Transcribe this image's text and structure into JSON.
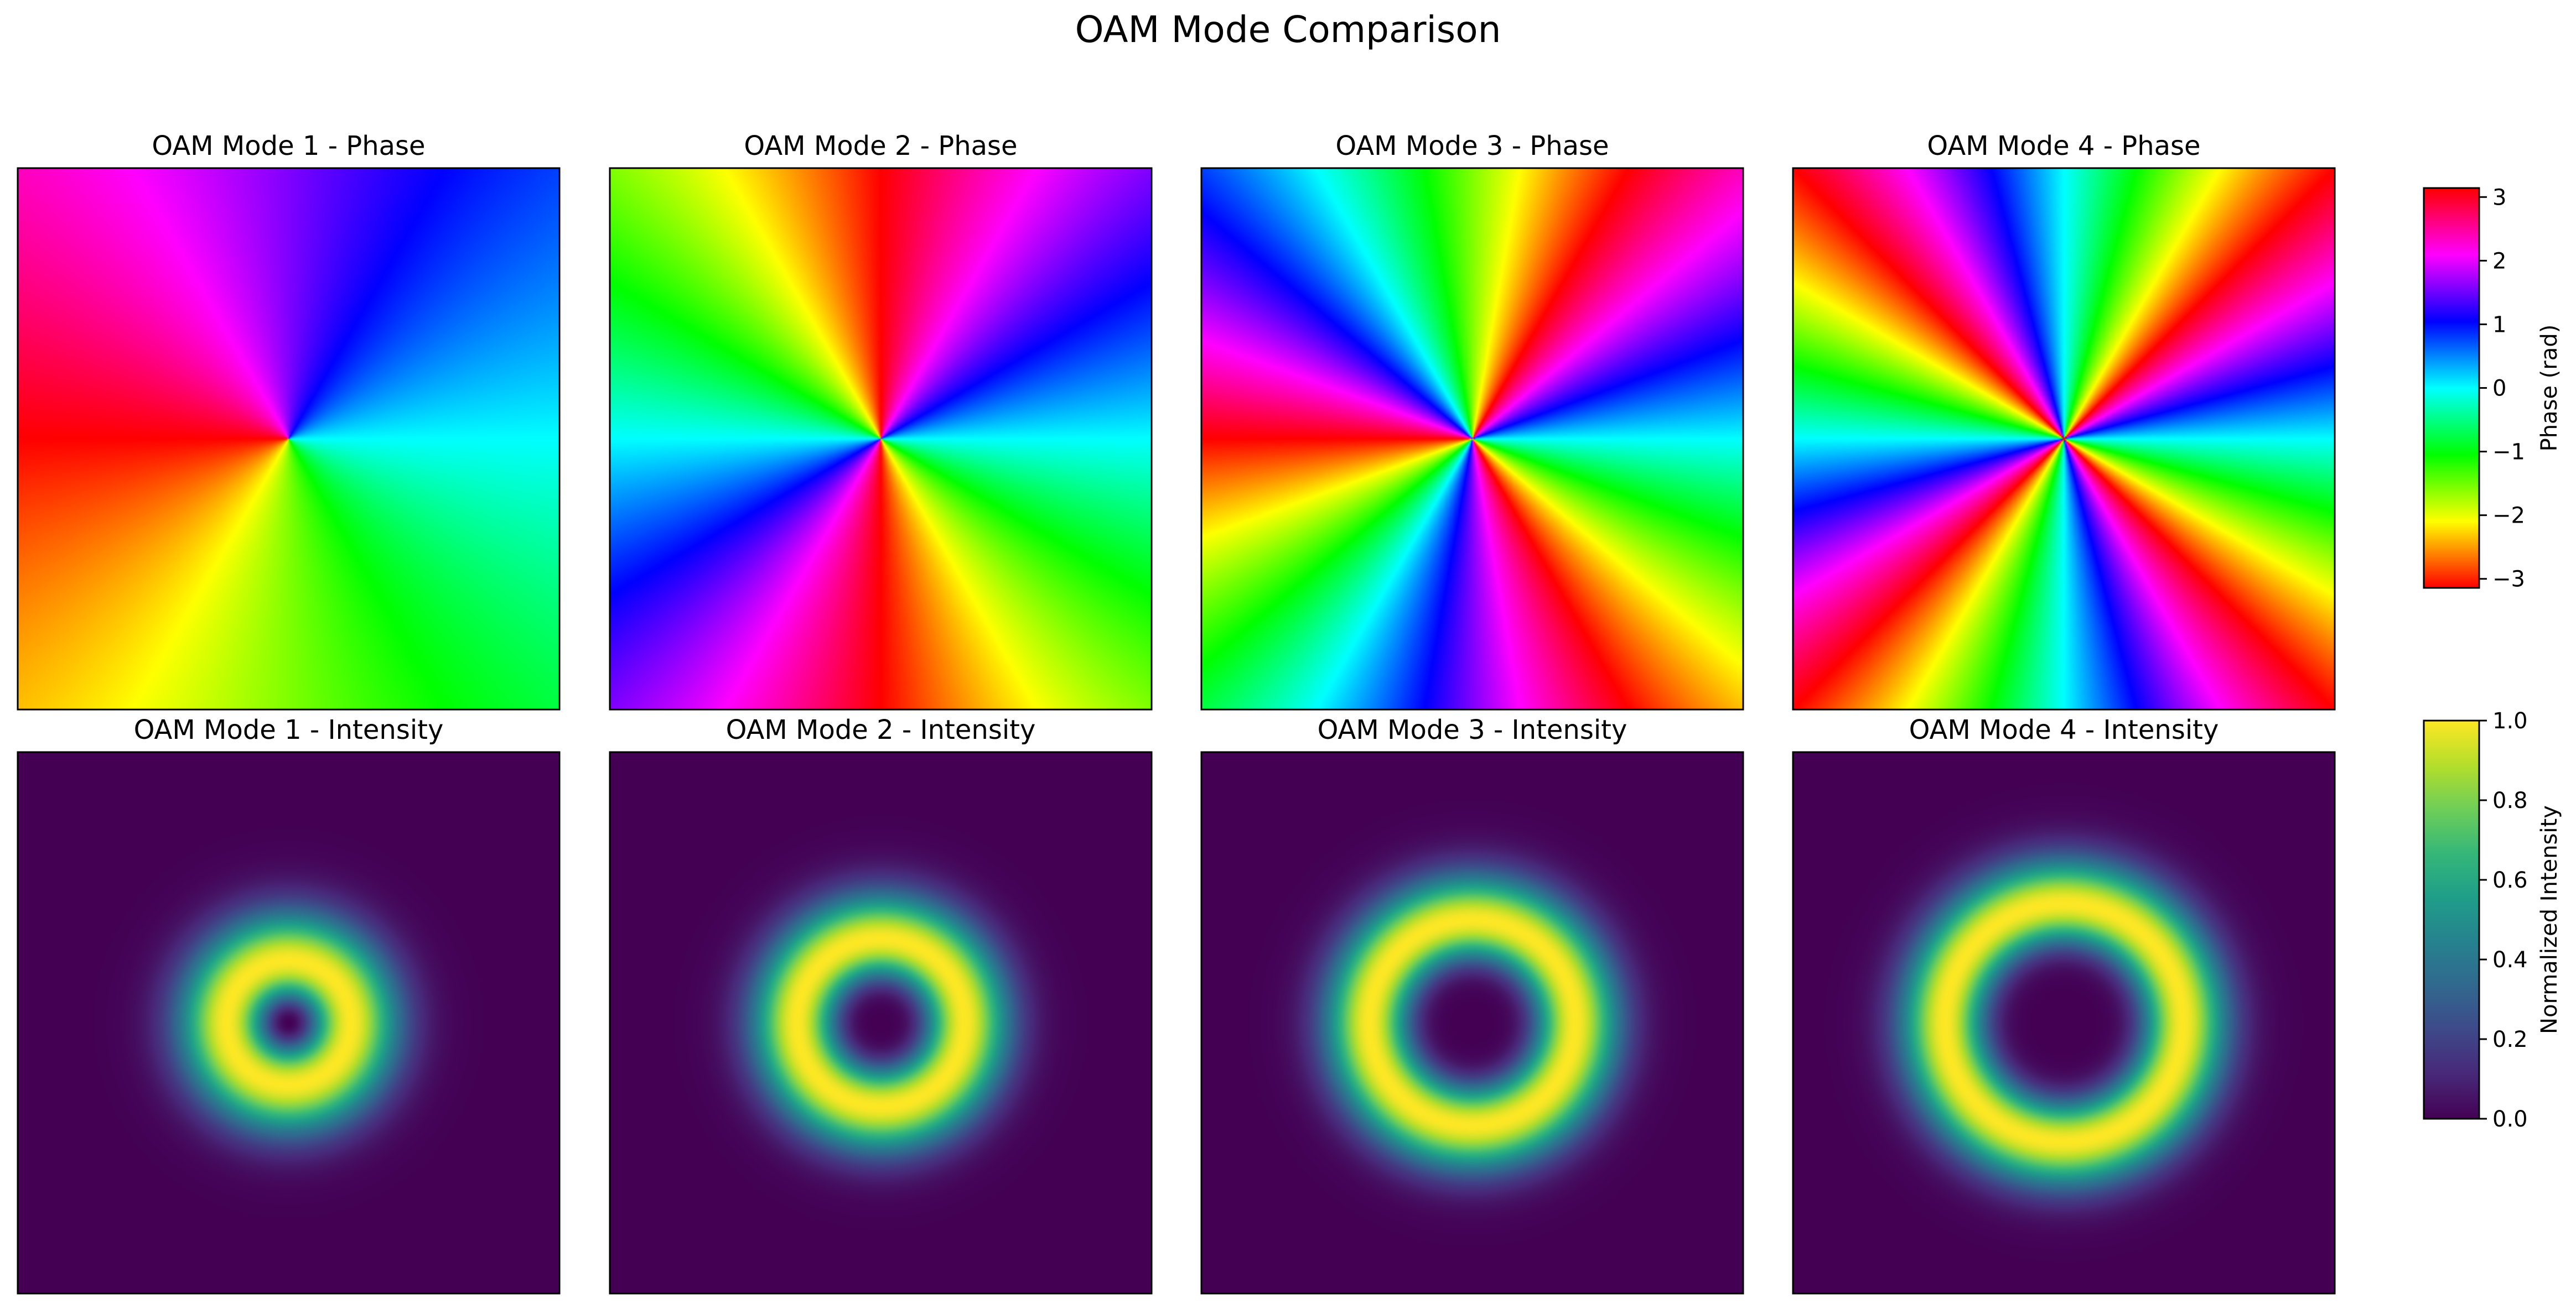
{
  "title": "OAM Mode Comparison",
  "chart_data": [
    {
      "type": "heatmap",
      "quantity": "phase",
      "title": "OAM Mode 1 - Phase",
      "mode": 1,
      "colormap": "hsv",
      "range": [
        -3.1416,
        3.1416
      ]
    },
    {
      "type": "heatmap",
      "quantity": "phase",
      "title": "OAM Mode 2 - Phase",
      "mode": 2,
      "colormap": "hsv",
      "range": [
        -3.1416,
        3.1416
      ]
    },
    {
      "type": "heatmap",
      "quantity": "phase",
      "title": "OAM Mode 3 - Phase",
      "mode": 3,
      "colormap": "hsv",
      "range": [
        -3.1416,
        3.1416
      ]
    },
    {
      "type": "heatmap",
      "quantity": "phase",
      "title": "OAM Mode 4 - Phase",
      "mode": 4,
      "colormap": "hsv",
      "range": [
        -3.1416,
        3.1416
      ]
    },
    {
      "type": "heatmap",
      "quantity": "intensity",
      "title": "OAM Mode 1 - Intensity",
      "mode": 1,
      "colormap": "viridis",
      "range": [
        0,
        1
      ],
      "ring_radius": 0.23
    },
    {
      "type": "heatmap",
      "quantity": "intensity",
      "title": "OAM Mode 2 - Intensity",
      "mode": 2,
      "colormap": "viridis",
      "range": [
        0,
        1
      ],
      "ring_radius": 0.31
    },
    {
      "type": "heatmap",
      "quantity": "intensity",
      "title": "OAM Mode 3 - Intensity",
      "mode": 3,
      "colormap": "viridis",
      "range": [
        0,
        1
      ],
      "ring_radius": 0.38
    },
    {
      "type": "heatmap",
      "quantity": "intensity",
      "title": "OAM Mode 4 - Intensity",
      "mode": 4,
      "colormap": "viridis",
      "range": [
        0,
        1
      ],
      "ring_radius": 0.44
    }
  ],
  "colorbars": [
    {
      "label": "Phase (rad)",
      "colormap": "hsv",
      "range": [
        -3.1416,
        3.1416
      ],
      "ticks": [
        3,
        2,
        1,
        0,
        -1,
        -2,
        -3
      ],
      "tick_labels": [
        "3",
        "2",
        "1",
        "0",
        "−1",
        "−2",
        "−3"
      ]
    },
    {
      "label": "Normalized Intensity",
      "colormap": "viridis",
      "range": [
        0,
        1
      ],
      "ticks": [
        1.0,
        0.8,
        0.6,
        0.4,
        0.2,
        0.0
      ],
      "tick_labels": [
        "1.0",
        "0.8",
        "0.6",
        "0.4",
        "0.2",
        "0.0"
      ]
    }
  ],
  "colors": {
    "viridis": [
      "#440154",
      "#482878",
      "#3e4989",
      "#31688e",
      "#26828e",
      "#1f9e89",
      "#35b779",
      "#6ece58",
      "#b5de2b",
      "#fde725"
    ],
    "hsv": [
      "#ff0000",
      "#ffff00",
      "#00ff00",
      "#00ffff",
      "#0000ff",
      "#ff00ff",
      "#ff0000"
    ]
  }
}
